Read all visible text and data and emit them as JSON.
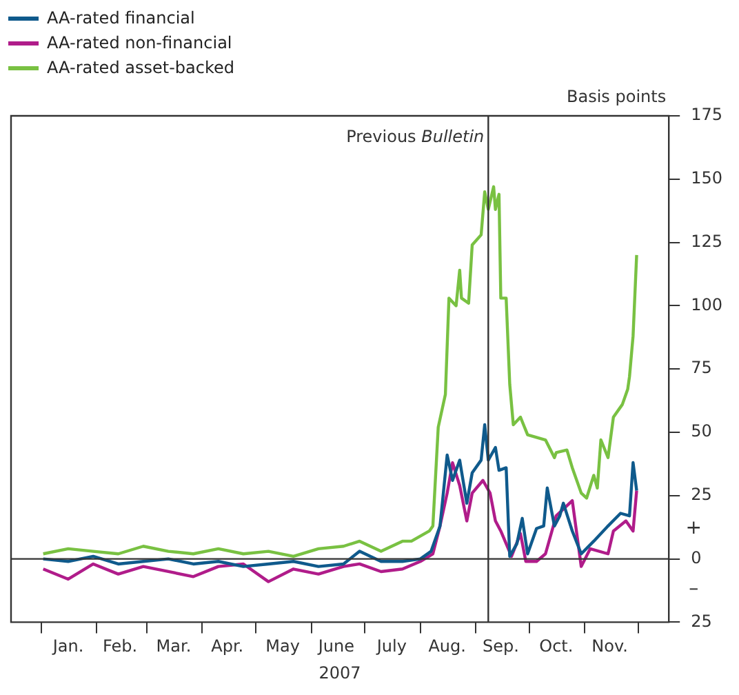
{
  "chart_data": {
    "type": "line",
    "xlabel": "2007",
    "ylabel": "Basis points",
    "legend": "top left",
    "grid": false,
    "marker": "none",
    "line_style": "solid",
    "xlim": [
      "2006-12-15",
      "2007-12-18"
    ],
    "xticks": [
      {
        "value": "2007-01-01",
        "label": null
      },
      {
        "value": "2007-01-16",
        "label": "Jan."
      },
      {
        "value": "2007-02-01",
        "label": null
      },
      {
        "value": "2007-02-14",
        "label": "Feb."
      },
      {
        "value": "2007-03-01",
        "label": null
      },
      {
        "value": "2007-03-16",
        "label": "Mar."
      },
      {
        "value": "2007-04-01",
        "label": null
      },
      {
        "value": "2007-04-15",
        "label": "Apr."
      },
      {
        "value": "2007-05-01",
        "label": null
      },
      {
        "value": "2007-05-16",
        "label": "May"
      },
      {
        "value": "2007-06-01",
        "label": null
      },
      {
        "value": "2007-06-15",
        "label": "June"
      },
      {
        "value": "2007-07-01",
        "label": null
      },
      {
        "value": "2007-07-16",
        "label": "July"
      },
      {
        "value": "2007-08-01",
        "label": null
      },
      {
        "value": "2007-08-16",
        "label": "Aug."
      },
      {
        "value": "2007-09-01",
        "label": null
      },
      {
        "value": "2007-09-15",
        "label": "Sep."
      },
      {
        "value": "2007-10-01",
        "label": null
      },
      {
        "value": "2007-10-16",
        "label": "Oct."
      },
      {
        "value": "2007-11-01",
        "label": null
      },
      {
        "value": "2007-11-15",
        "label": "Nov."
      },
      {
        "value": "2007-12-01",
        "label": null
      }
    ],
    "ylim": [
      -25,
      175
    ],
    "yticks": [
      {
        "value": -25,
        "label": "25"
      },
      0,
      25,
      50,
      75,
      100,
      125,
      150,
      175
    ],
    "ref_lines": [
      {
        "axis": "x",
        "value": "2007-09-08",
        "label": "Previous Bulletin"
      },
      {
        "axis": "y",
        "value": 0
      }
    ],
    "annotations": [
      "+",
      "–"
    ],
    "series": [
      {
        "name": "AA-rated financial",
        "color": "#0f5a8c",
        "x": [
          "2007-01-02",
          "2007-01-16",
          "2007-01-30",
          "2007-02-13",
          "2007-02-27",
          "2007-03-13",
          "2007-03-27",
          "2007-04-10",
          "2007-04-24",
          "2007-05-08",
          "2007-05-22",
          "2007-06-05",
          "2007-06-19",
          "2007-06-28",
          "2007-07-10",
          "2007-07-22",
          "2007-08-01",
          "2007-08-07",
          "2007-08-12",
          "2007-08-16",
          "2007-08-19",
          "2007-08-23",
          "2007-08-27",
          "2007-08-30",
          "2007-09-04",
          "2007-09-06",
          "2007-09-08",
          "2007-09-12",
          "2007-09-14",
          "2007-09-18",
          "2007-09-20",
          "2007-09-24",
          "2007-09-27",
          "2007-09-30",
          "2007-10-05",
          "2007-10-09",
          "2007-10-11",
          "2007-10-15",
          "2007-10-18",
          "2007-10-20",
          "2007-10-25",
          "2007-10-30",
          "2007-11-06",
          "2007-11-14",
          "2007-11-21",
          "2007-11-26",
          "2007-11-28",
          "2007-11-30"
        ],
        "values": [
          0,
          -1,
          1,
          -2,
          -1,
          0,
          -2,
          -1,
          -3,
          -2,
          -1,
          -3,
          -2,
          3,
          -1,
          -1,
          0,
          3,
          13,
          41,
          31,
          39,
          22,
          34,
          39,
          53,
          39,
          44,
          35,
          36,
          1,
          6,
          16,
          2,
          12,
          13,
          28,
          13,
          17,
          22,
          11,
          2,
          7,
          13,
          18,
          17,
          38,
          27
        ]
      },
      {
        "name": "AA-rated non-financial",
        "color": "#b01c8a",
        "x": [
          "2007-01-02",
          "2007-01-16",
          "2007-01-30",
          "2007-02-13",
          "2007-02-27",
          "2007-03-13",
          "2007-03-27",
          "2007-04-10",
          "2007-04-24",
          "2007-05-08",
          "2007-05-22",
          "2007-06-05",
          "2007-06-19",
          "2007-06-28",
          "2007-07-10",
          "2007-07-22",
          "2007-08-01",
          "2007-08-08",
          "2007-08-12",
          "2007-08-16",
          "2007-08-19",
          "2007-08-23",
          "2007-08-27",
          "2007-08-30",
          "2007-09-05",
          "2007-09-09",
          "2007-09-12",
          "2007-09-15",
          "2007-09-21",
          "2007-09-26",
          "2007-09-29",
          "2007-10-05",
          "2007-10-10",
          "2007-10-16",
          "2007-10-25",
          "2007-10-30",
          "2007-11-04",
          "2007-11-14",
          "2007-11-17",
          "2007-11-24",
          "2007-11-28",
          "2007-11-30"
        ],
        "values": [
          -4,
          -8,
          -2,
          -6,
          -3,
          -5,
          -7,
          -3,
          -2,
          -9,
          -4,
          -6,
          -3,
          -2,
          -5,
          -4,
          -1,
          2,
          13,
          26,
          38,
          29,
          15,
          26,
          31,
          26,
          15,
          11,
          1,
          10,
          -1,
          -1,
          2,
          17,
          23,
          -3,
          4,
          2,
          11,
          15,
          11,
          27
        ]
      },
      {
        "name": "AA-rated asset-backed",
        "color": "#79c142",
        "x": [
          "2007-01-02",
          "2007-01-16",
          "2007-01-30",
          "2007-02-13",
          "2007-02-27",
          "2007-03-13",
          "2007-03-27",
          "2007-04-10",
          "2007-04-24",
          "2007-05-08",
          "2007-05-22",
          "2007-06-05",
          "2007-06-19",
          "2007-06-28",
          "2007-07-10",
          "2007-07-22",
          "2007-07-27",
          "2007-08-06",
          "2007-08-08",
          "2007-08-11",
          "2007-08-15",
          "2007-08-17",
          "2007-08-21",
          "2007-08-23",
          "2007-08-24",
          "2007-08-28",
          "2007-08-30",
          "2007-09-04",
          "2007-09-06",
          "2007-09-08",
          "2007-09-11",
          "2007-09-12",
          "2007-09-14",
          "2007-09-15",
          "2007-09-18",
          "2007-09-20",
          "2007-09-22",
          "2007-09-26",
          "2007-09-30",
          "2007-10-05",
          "2007-10-10",
          "2007-10-15",
          "2007-10-16",
          "2007-10-22",
          "2007-10-25",
          "2007-10-30",
          "2007-11-02",
          "2007-11-06",
          "2007-11-08",
          "2007-11-10",
          "2007-11-14",
          "2007-11-17",
          "2007-11-22",
          "2007-11-25",
          "2007-11-26",
          "2007-11-28",
          "2007-11-30"
        ],
        "values": [
          2,
          4,
          3,
          2,
          5,
          3,
          2,
          4,
          2,
          3,
          1,
          4,
          5,
          7,
          3,
          7,
          7,
          11,
          13,
          52,
          65,
          103,
          100,
          114,
          103,
          101,
          124,
          128,
          145,
          138,
          147,
          138,
          144,
          103,
          103,
          69,
          53,
          56,
          49,
          48,
          47,
          40,
          42,
          43,
          36,
          26,
          24,
          33,
          28,
          47,
          40,
          56,
          61,
          67,
          72,
          88,
          120
        ]
      }
    ]
  }
}
